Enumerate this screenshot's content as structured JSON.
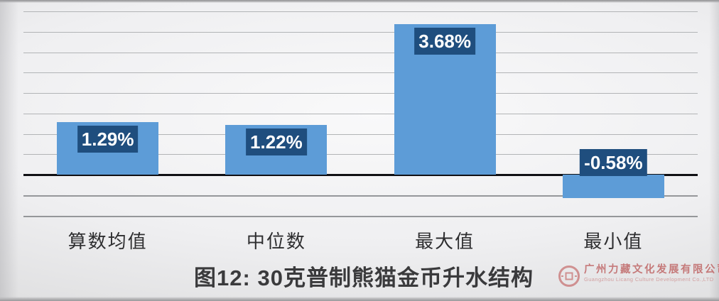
{
  "chart_data": {
    "type": "bar",
    "title": "图12: 30克普制熊猫金币升水结构",
    "categories": [
      "算数均值",
      "中位数",
      "最大值",
      "最小值"
    ],
    "values": [
      1.29,
      1.22,
      3.68,
      -0.58
    ],
    "data_labels": [
      "1.29%",
      "1.22%",
      "3.68%",
      "-0.58%"
    ],
    "xlabel": "",
    "ylabel": "",
    "ylim": [
      -1.0,
      4.0
    ],
    "gridline_step": 0.5,
    "grid": true,
    "legend": false,
    "bar_color": "#5d9cd7",
    "data_label_bg": "#1f4e7e",
    "data_label_text_color": "#ffffff"
  },
  "watermark": {
    "icon": "coin-logo-icon",
    "company_cn": "广州力藏文化发展有限公司",
    "company_en": "Guangzhou Licang Culture Development Co.,LTD",
    "accent_color": "#c26f6f"
  }
}
